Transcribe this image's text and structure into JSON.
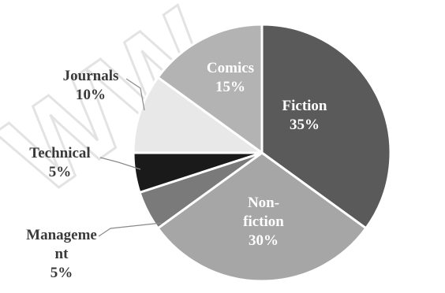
{
  "watermark_text": "WW",
  "colors": {
    "Fiction": "#5a5a5a",
    "Non-fiction": "#a6a6a6",
    "Management": "#7a7a7a",
    "Technical": "#1a1a1a",
    "Journals": "#e8e8e8",
    "Comics": "#b3b3b3",
    "label_on_dark": "#ffffff",
    "label_on_light": "#3a3a3a"
  },
  "chart_data": {
    "type": "pie",
    "title": "",
    "slices": [
      {
        "name": "Fiction",
        "value": 35,
        "label_lines": [
          "Fiction",
          "35%"
        ]
      },
      {
        "name": "Non-fiction",
        "value": 30,
        "label_lines": [
          "Non-",
          "fiction",
          "30%"
        ]
      },
      {
        "name": "Management",
        "value": 5,
        "label_lines": [
          "Manageme",
          "nt",
          "5%"
        ]
      },
      {
        "name": "Technical",
        "value": 5,
        "label_lines": [
          "Technical",
          "5%"
        ]
      },
      {
        "name": "Journals",
        "value": 10,
        "label_lines": [
          "Journals",
          "10%"
        ]
      },
      {
        "name": "Comics",
        "value": 15,
        "label_lines": [
          "Comics",
          "15%"
        ]
      }
    ],
    "start": "12 o'clock",
    "direction": "clockwise",
    "legend": "none"
  }
}
